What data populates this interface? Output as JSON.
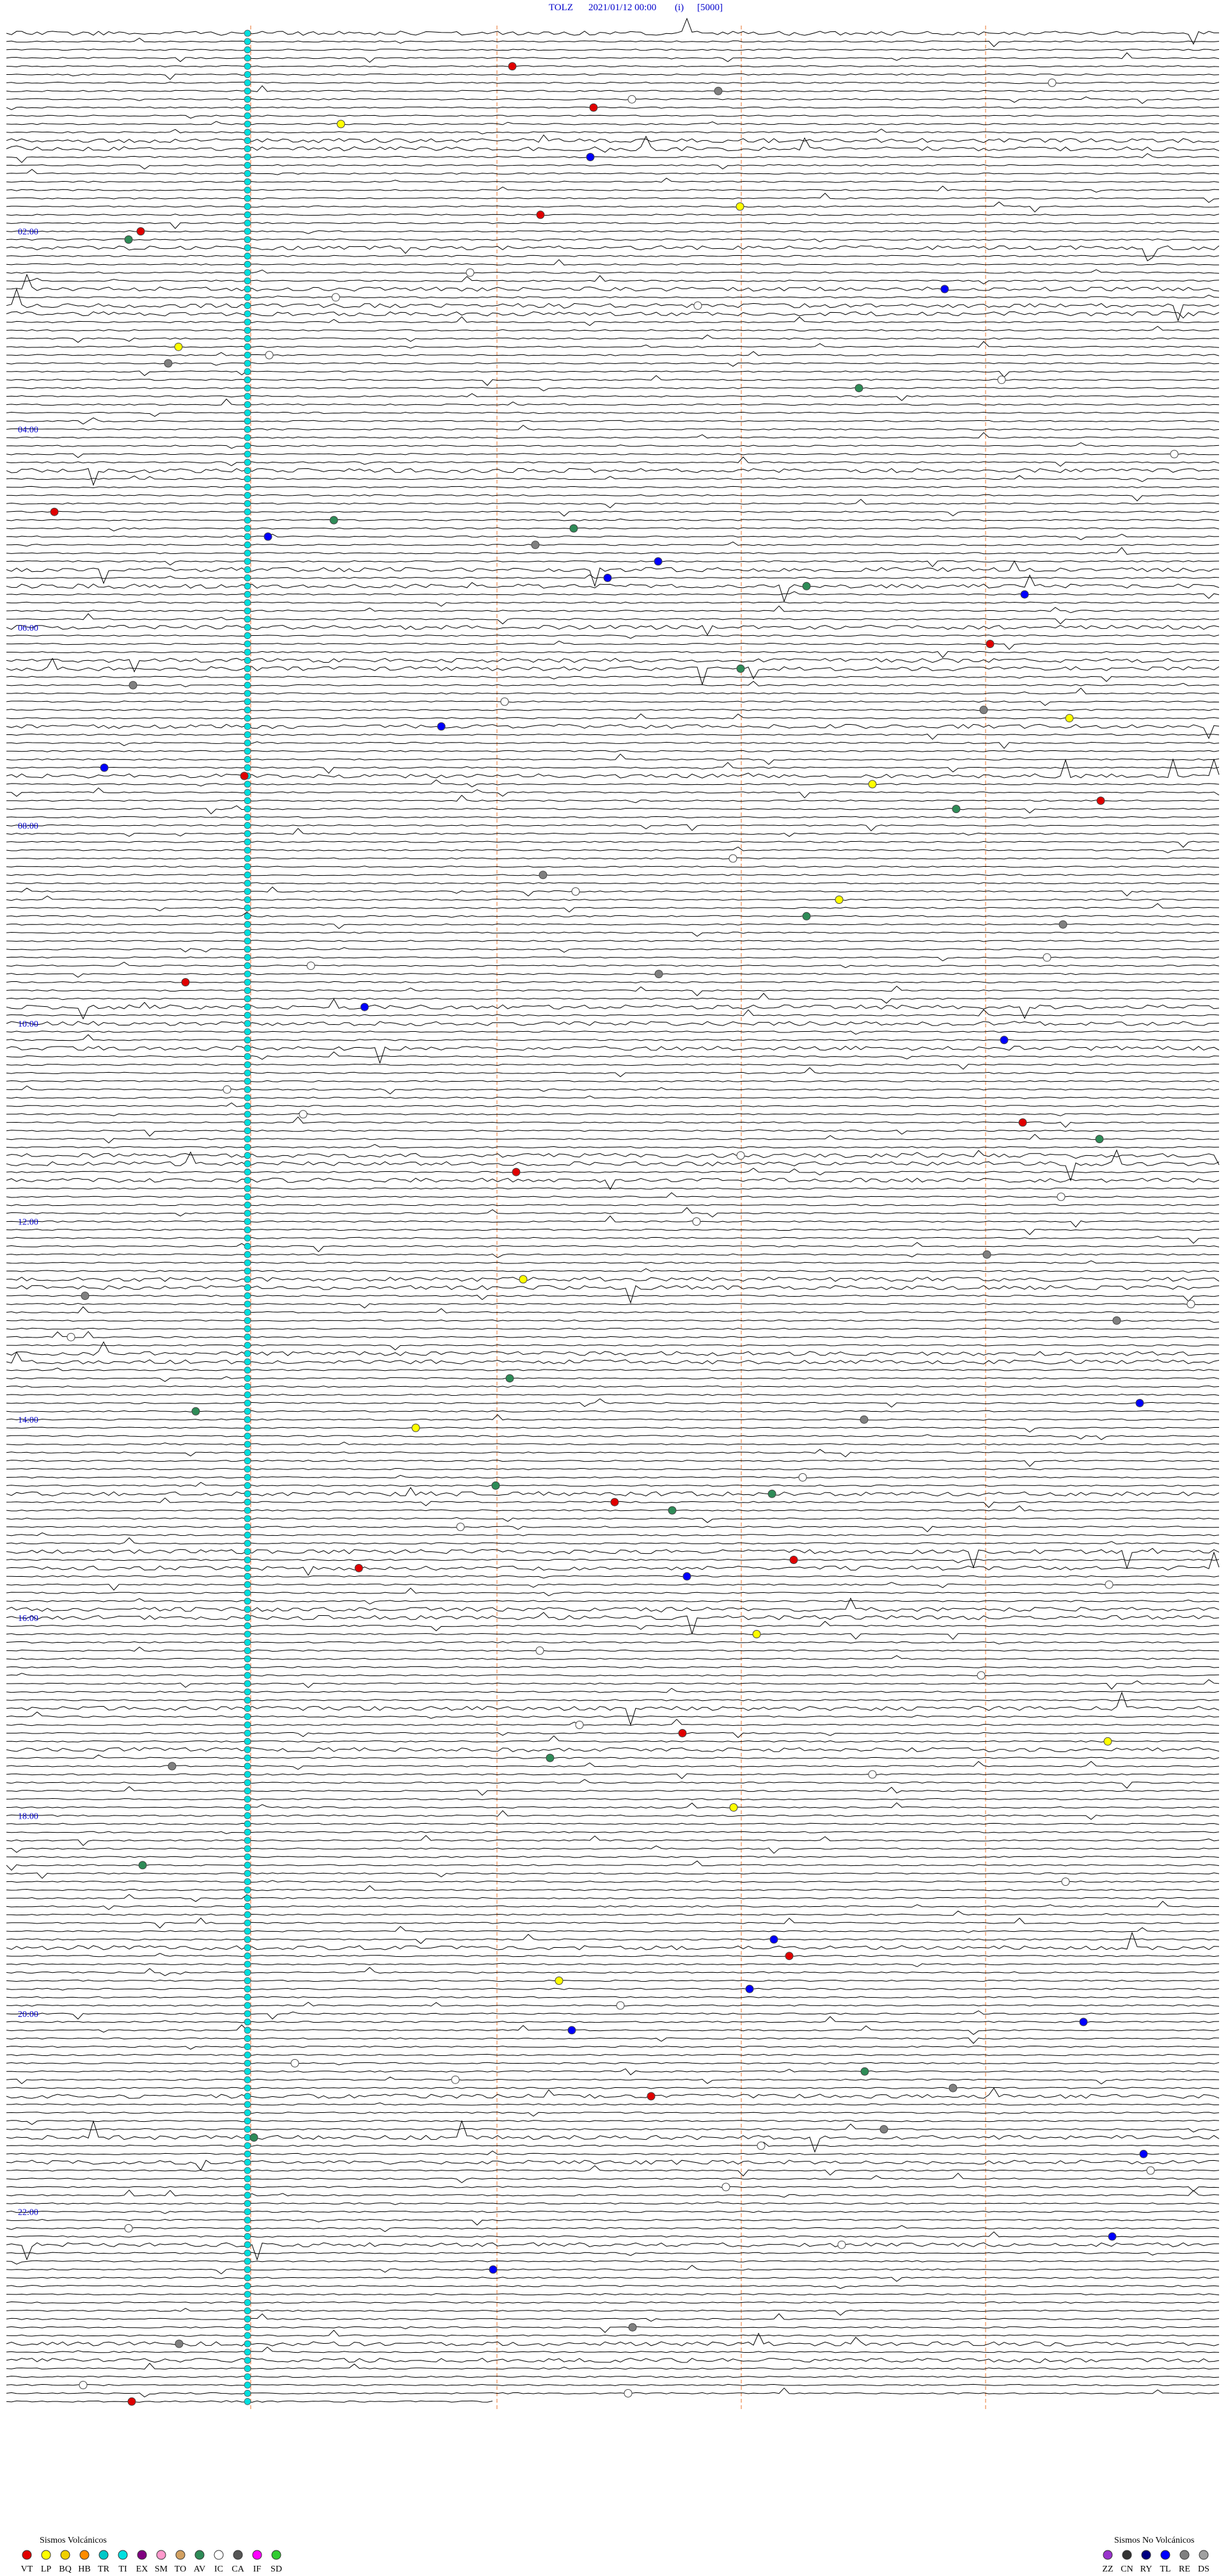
{
  "header": {
    "station": "TOLZ",
    "datetime": "2021/01/12 00:00",
    "mode": "(i)",
    "scale": "[5000]"
  },
  "time_labels": [
    "02:00",
    "04:00",
    "06:00",
    "08:00",
    "10:00",
    "12:00",
    "14:00",
    "16:00",
    "18:00",
    "20:00",
    "22:00"
  ],
  "legend_volcanic": {
    "title": "Sismos Volcánicos",
    "items": [
      {
        "code": "VT",
        "color": "#e00000"
      },
      {
        "code": "LP",
        "color": "#ffff00"
      },
      {
        "code": "BQ",
        "color": "#f0d000"
      },
      {
        "code": "HB",
        "color": "#ff8c00"
      },
      {
        "code": "TR",
        "color": "#00c8c8"
      },
      {
        "code": "TI",
        "color": "#00e0e0"
      },
      {
        "code": "EX",
        "color": "#800080"
      },
      {
        "code": "SM",
        "color": "#ff99cc"
      },
      {
        "code": "TO",
        "color": "#d2a060"
      },
      {
        "code": "AV",
        "color": "#2e8b57"
      },
      {
        "code": "IC",
        "color": "#ffffff"
      },
      {
        "code": "CA",
        "color": "#555555"
      },
      {
        "code": "IF",
        "color": "#ff00ff"
      },
      {
        "code": "SD",
        "color": "#33cc33"
      }
    ]
  },
  "legend_non_volcanic": {
    "title": "Sismos No Volcánicos",
    "items": [
      {
        "code": "ZZ",
        "color": "#9933cc"
      },
      {
        "code": "CN",
        "color": "#333333"
      },
      {
        "code": "RY",
        "color": "#000080"
      },
      {
        "code": "TL",
        "color": "#0000ff"
      },
      {
        "code": "RE",
        "color": "#808080"
      },
      {
        "code": "DS",
        "color": "#a0a0a0"
      }
    ]
  }
}
